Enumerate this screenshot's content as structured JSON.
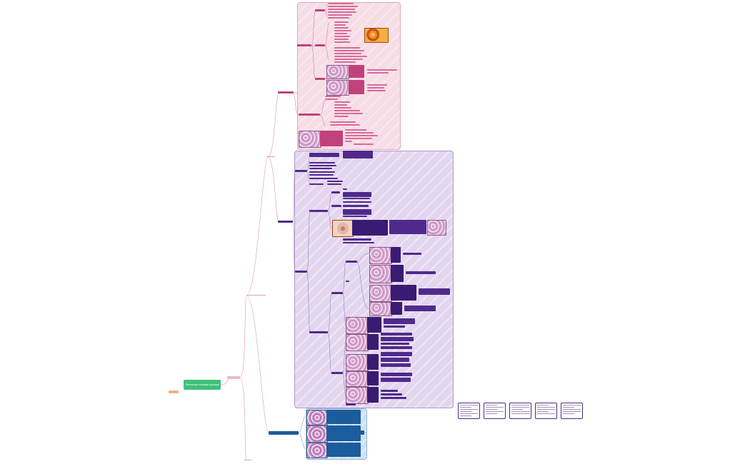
{
  "central_topic": "Патология половых органов",
  "legend_colors": {
    "central": "#3ec27a",
    "pink_branch": "#c0427a",
    "purple_branch": "#4f2a8c",
    "blue_branch": "#1b5c9c"
  },
  "thumbnails": [
    {
      "id": "summary-1"
    },
    {
      "id": "summary-2"
    },
    {
      "id": "summary-3"
    },
    {
      "id": "summary-4"
    },
    {
      "id": "summary-5"
    }
  ]
}
